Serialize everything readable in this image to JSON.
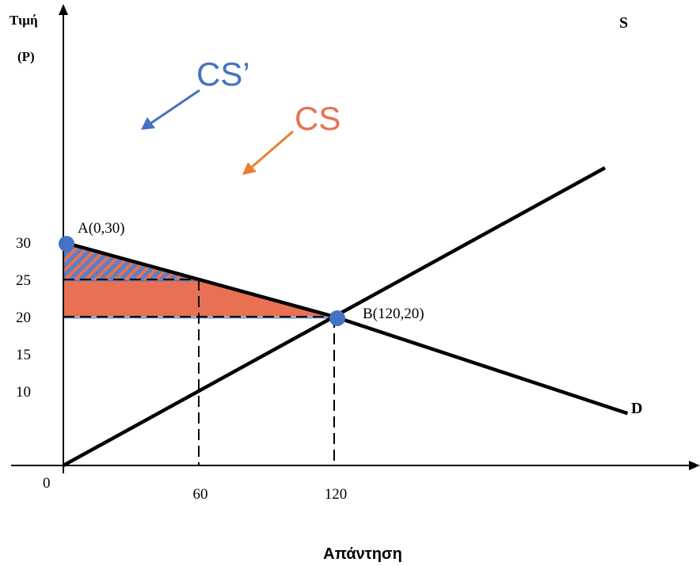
{
  "chart_data": {
    "type": "line",
    "ylabel_line1": "Τιμή",
    "ylabel_line2": "(P)",
    "caption": "Απάντηση",
    "origin_label": "0",
    "x_ticks": [
      60,
      120
    ],
    "y_ticks": [
      10,
      15,
      20,
      25,
      30
    ],
    "series": [
      {
        "name": "S",
        "x": [
          0,
          120,
          240
        ],
        "y": [
          0,
          20,
          40
        ]
      },
      {
        "name": "D",
        "x": [
          0,
          120,
          250
        ],
        "y": [
          30,
          20,
          7
        ]
      }
    ],
    "points": [
      {
        "label": "A(0,30)",
        "x": 0,
        "y": 30
      },
      {
        "label": "B(120,20)",
        "x": 120,
        "y": 20
      }
    ],
    "areas": [
      {
        "label": "CS",
        "polygon": [
          [
            0,
            25
          ],
          [
            60,
            25
          ],
          [
            120,
            20
          ],
          [
            0,
            20
          ]
        ],
        "color": "#E97153"
      },
      {
        "label": "CS’",
        "polygon": [
          [
            0,
            30
          ],
          [
            60,
            25
          ],
          [
            0,
            25
          ]
        ],
        "color": "#5B7FC4",
        "hatch": "#E97153"
      }
    ],
    "reference_lines": [
      {
        "from": [
          0,
          25
        ],
        "to": [
          60,
          25
        ]
      },
      {
        "from": [
          60,
          25
        ],
        "to": [
          60,
          0
        ]
      },
      {
        "from": [
          0,
          20
        ],
        "to": [
          120,
          20
        ]
      },
      {
        "from": [
          120,
          20
        ],
        "to": [
          120,
          0
        ]
      }
    ],
    "colors": {
      "cs": "#E97153",
      "cs_prime": "#4472C4",
      "point": "#4472C4",
      "cs_arrow": "#ED7D31"
    }
  }
}
